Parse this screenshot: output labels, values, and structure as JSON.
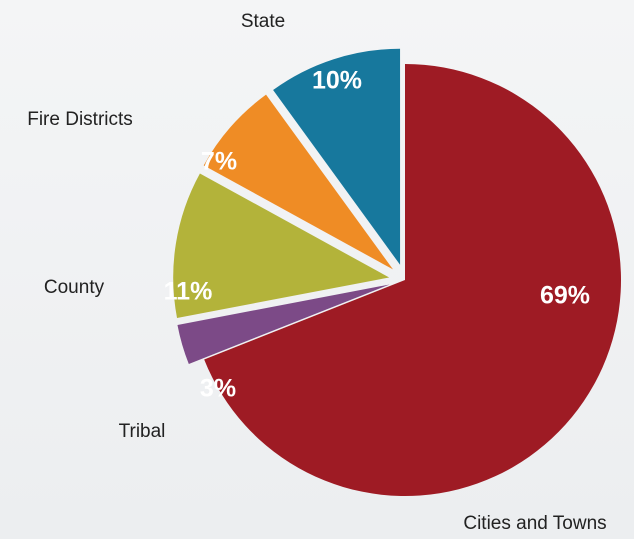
{
  "chart_data": {
    "type": "pie",
    "categories": [
      "Cities and Towns",
      "Tribal",
      "County",
      "Fire Districts",
      "State"
    ],
    "values": [
      69,
      3,
      11,
      7,
      10
    ],
    "value_labels": [
      "69%",
      "3%",
      "11%",
      "7%",
      "10%"
    ],
    "colors": [
      "#9e1b24",
      "#7c4a87",
      "#b3b33a",
      "#ef8c25",
      "#17789d"
    ]
  }
}
